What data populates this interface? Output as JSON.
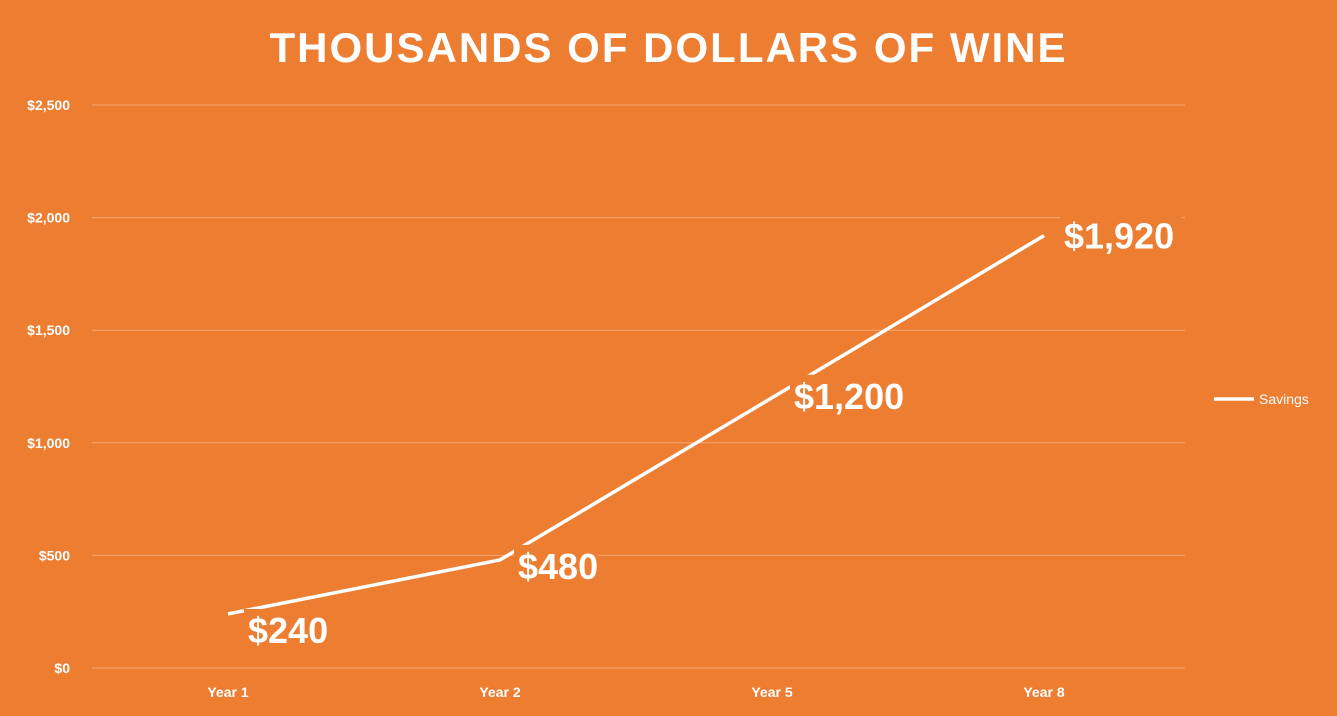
{
  "chart_data": {
    "type": "line",
    "title": "THOUSANDS OF DOLLARS OF WINE",
    "xlabel": "",
    "ylabel": "",
    "categories": [
      "Year 1",
      "Year 2",
      "Year 5",
      "Year 8"
    ],
    "series": [
      {
        "name": "Savings",
        "values": [
          240,
          480,
          1200,
          1920
        ],
        "labels": [
          "$240",
          "$480",
          "$1,200",
          "$1,920"
        ]
      }
    ],
    "ylim": [
      0,
      2500
    ],
    "yticks": [
      0,
      500,
      1000,
      1500,
      2000,
      2500
    ],
    "ytick_labels": [
      "$0",
      "$500",
      "$1,000",
      "$1,500",
      "$2,000",
      "$2,500"
    ],
    "grid": true,
    "legend_position": "right",
    "colors": {
      "background": "#ED7D31",
      "line": "#FFFFFF",
      "grid": "#F3A875",
      "text": "#FFFFFF"
    }
  }
}
